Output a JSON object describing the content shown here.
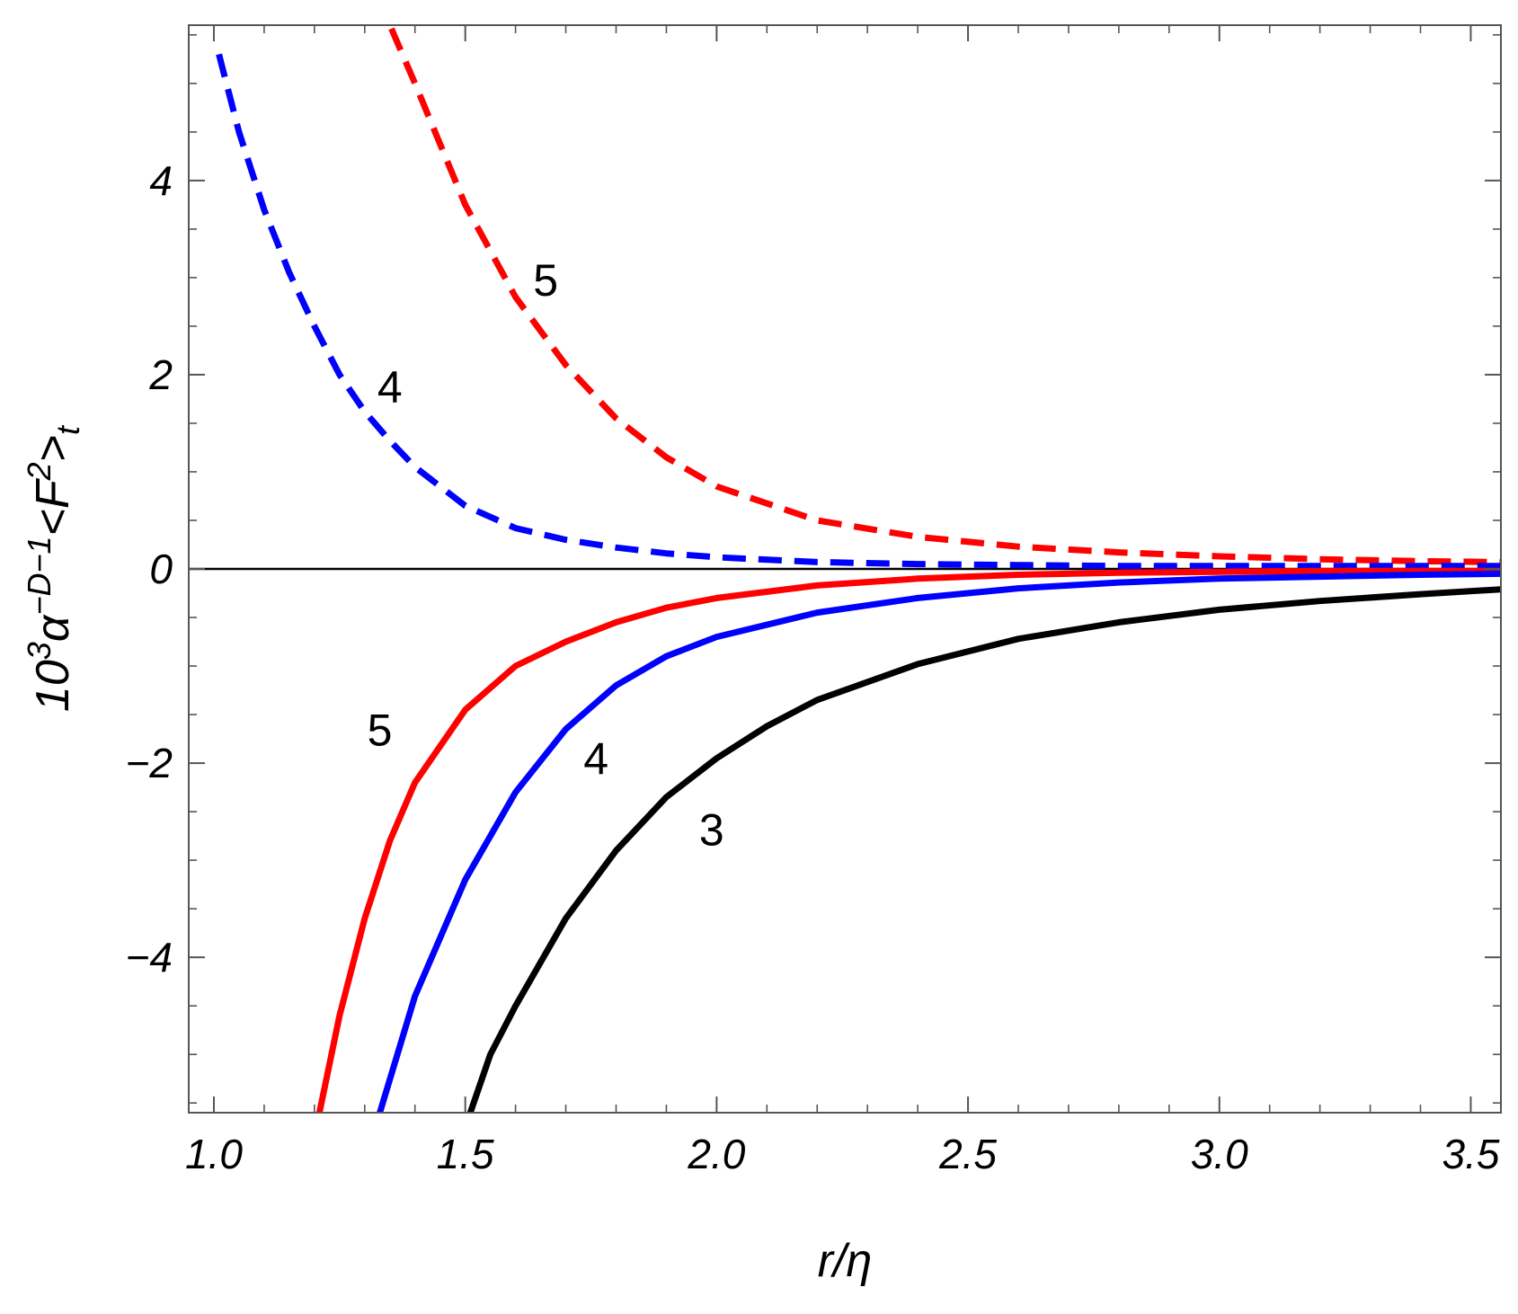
{
  "chart_data": {
    "type": "line",
    "title": "",
    "xlabel": "r/η",
    "ylabel": {
      "prefix": "10",
      "prefix_sup": "3",
      "alpha": "α",
      "alpha_sup": "−D−1",
      "body": "<F",
      "body_sup": "2",
      "close": ">",
      "sub": "t"
    },
    "xlim": [
      0.95,
      3.56
    ],
    "ylim": [
      -5.6,
      5.6
    ],
    "x_ticks": [
      {
        "value": 1.0,
        "label": "1.0"
      },
      {
        "value": 1.5,
        "label": "1.5"
      },
      {
        "value": 2.0,
        "label": "2.0"
      },
      {
        "value": 2.5,
        "label": "2.5"
      },
      {
        "value": 3.0,
        "label": "3.0"
      },
      {
        "value": 3.5,
        "label": "3.5"
      }
    ],
    "y_ticks": [
      {
        "value": 4,
        "label": "4"
      },
      {
        "value": 2,
        "label": "2"
      },
      {
        "value": 0,
        "label": "0"
      },
      {
        "value": -2,
        "label": "−2"
      },
      {
        "value": -4,
        "label": "−4"
      }
    ],
    "x_minor_step": 0.1,
    "y_minor_step": 0.5,
    "zero_line": true,
    "grid": false,
    "series": [
      {
        "label": "5",
        "color": "#ff0000",
        "style": "dashed",
        "x": [
          1.28,
          1.35,
          1.4,
          1.5,
          1.6,
          1.7,
          1.8,
          1.9,
          2.0,
          2.2,
          2.4,
          2.6,
          2.8,
          3.0,
          3.2,
          3.4,
          3.56
        ],
        "y": [
          6.2,
          5.6,
          5.0,
          3.75,
          2.8,
          2.1,
          1.55,
          1.15,
          0.85,
          0.5,
          0.33,
          0.23,
          0.17,
          0.13,
          0.1,
          0.08,
          0.07
        ]
      },
      {
        "label": "4",
        "color": "#0000ff",
        "style": "dashed",
        "x": [
          1.01,
          1.05,
          1.1,
          1.15,
          1.2,
          1.25,
          1.3,
          1.35,
          1.4,
          1.5,
          1.6,
          1.7,
          1.8,
          1.9,
          2.0,
          2.2,
          2.4,
          2.6,
          2.8,
          3.0,
          3.2,
          3.4,
          3.56
        ],
        "y": [
          5.3,
          4.5,
          3.7,
          3.05,
          2.5,
          2.0,
          1.62,
          1.32,
          1.05,
          0.65,
          0.42,
          0.3,
          0.22,
          0.16,
          0.12,
          0.07,
          0.05,
          0.04,
          0.03,
          0.03,
          0.03,
          0.03,
          0.03
        ]
      },
      {
        "label": "5",
        "color": "#ff0000",
        "style": "solid",
        "x": [
          1.21,
          1.25,
          1.3,
          1.35,
          1.4,
          1.5,
          1.6,
          1.7,
          1.8,
          1.9,
          2.0,
          2.2,
          2.4,
          2.6,
          2.8,
          3.0,
          3.2,
          3.4,
          3.56
        ],
        "y": [
          -5.6,
          -4.6,
          -3.6,
          -2.8,
          -2.2,
          -1.45,
          -1.0,
          -0.75,
          -0.55,
          -0.4,
          -0.3,
          -0.17,
          -0.1,
          -0.06,
          -0.04,
          -0.03,
          -0.02,
          -0.02,
          -0.02
        ]
      },
      {
        "label": "4",
        "color": "#0000ff",
        "style": "solid",
        "x": [
          1.33,
          1.4,
          1.5,
          1.6,
          1.7,
          1.8,
          1.9,
          2.0,
          2.2,
          2.4,
          2.6,
          2.8,
          3.0,
          3.2,
          3.4,
          3.56
        ],
        "y": [
          -5.6,
          -4.4,
          -3.2,
          -2.3,
          -1.65,
          -1.2,
          -0.9,
          -0.7,
          -0.45,
          -0.3,
          -0.2,
          -0.14,
          -0.1,
          -0.08,
          -0.06,
          -0.05
        ]
      },
      {
        "label": "3",
        "color": "#000000",
        "style": "solid",
        "x": [
          1.51,
          1.55,
          1.6,
          1.7,
          1.8,
          1.9,
          2.0,
          2.1,
          2.2,
          2.4,
          2.6,
          2.8,
          3.0,
          3.2,
          3.4,
          3.56
        ],
        "y": [
          -5.6,
          -5.0,
          -4.5,
          -3.6,
          -2.9,
          -2.35,
          -1.95,
          -1.62,
          -1.35,
          -0.98,
          -0.72,
          -0.55,
          -0.42,
          -0.33,
          -0.26,
          -0.21
        ]
      }
    ],
    "annotations": [
      {
        "text": "5",
        "x": 1.66,
        "y": 2.98
      },
      {
        "text": "4",
        "x": 1.35,
        "y": 1.88
      },
      {
        "text": "5",
        "x": 1.33,
        "y": -1.65
      },
      {
        "text": "4",
        "x": 1.76,
        "y": -1.95
      },
      {
        "text": "3",
        "x": 1.99,
        "y": -2.68
      }
    ]
  }
}
